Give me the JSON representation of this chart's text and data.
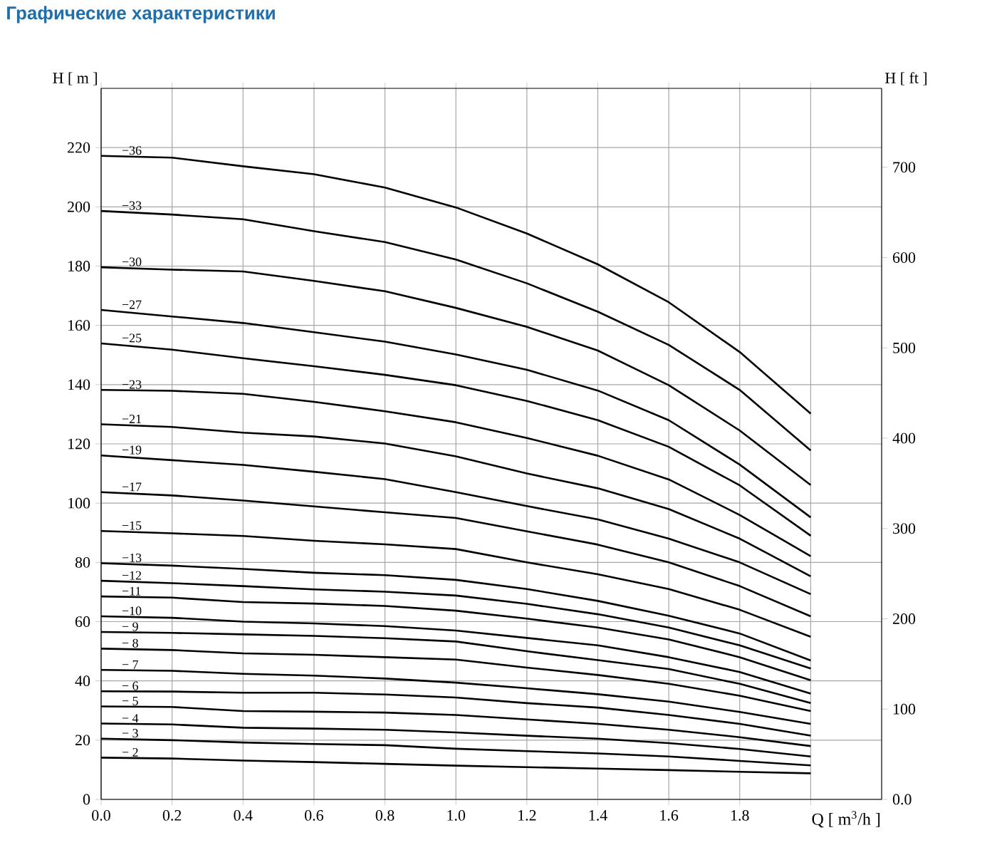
{
  "chart_data": {
    "type": "line",
    "title": "Графические характеристики",
    "xlabel": "Q [ m$^{3}$/h ]",
    "ylabel": "H [ m ]",
    "y2label": "H [ ft ]",
    "x": [
      0,
      0.2,
      0.4,
      0.6,
      0.8,
      1.0,
      1.2,
      1.4,
      1.6,
      1.8,
      2.0
    ],
    "xlim": [
      0,
      2.2
    ],
    "xticks": [
      {
        "value": 0,
        "label": "0.0"
      },
      0.2,
      0.4,
      0.6,
      0.8,
      {
        "value": 1,
        "label": "1.0"
      },
      1.2,
      1.4,
      1.6,
      1.8,
      {
        "value": 2,
        "label": null
      }
    ],
    "ylim": [
      0,
      240
    ],
    "yticks": [
      0,
      20,
      40,
      60,
      80,
      100,
      120,
      140,
      160,
      180,
      200,
      220
    ],
    "y2lim": [
      0,
      787.4
    ],
    "y2ticks": [
      {
        "value": 0,
        "label": "0.0"
      },
      100,
      200,
      300,
      400,
      500,
      600,
      700
    ],
    "grid": true,
    "marker": "none",
    "line_style": "solid",
    "series": [
      {
        "name": "−36",
        "color": "#000000",
        "values": [
          217.2,
          216.6,
          213.7,
          211,
          206.5,
          199.8,
          191,
          180.6,
          167.8,
          151,
          130.2
        ]
      },
      {
        "name": "−33",
        "color": "#000000",
        "values": [
          198.6,
          197.4,
          195.8,
          191.8,
          188.1,
          182.2,
          174.2,
          164.6,
          153.4,
          138.2,
          117.8
        ]
      },
      {
        "name": "−30",
        "color": "#000000",
        "values": [
          179.6,
          178.8,
          178.2,
          175,
          171.5,
          165.9,
          159.5,
          151.5,
          139.8,
          124.5,
          106.1
        ]
      },
      {
        "name": "−27",
        "color": "#000000",
        "values": [
          165.2,
          163,
          160.8,
          157.7,
          154.5,
          150.2,
          145,
          138,
          128,
          113,
          95.2
        ]
      },
      {
        "name": "−25",
        "color": "#000000",
        "values": [
          153.9,
          151.8,
          148.9,
          146.2,
          143.3,
          139.8,
          134.5,
          128,
          119,
          106,
          89.0
        ]
      },
      {
        "name": "−23",
        "color": "#000000",
        "values": [
          138.2,
          137.9,
          136.9,
          134.2,
          131.0,
          127.3,
          122,
          116,
          108,
          96,
          82.1
        ]
      },
      {
        "name": "−21",
        "color": "#000000",
        "values": [
          126.6,
          125.7,
          123.8,
          122.5,
          120.1,
          115.8,
          110,
          105,
          98,
          88,
          75.3
        ]
      },
      {
        "name": "−19",
        "color": "#000000",
        "values": [
          116.1,
          114.5,
          112.9,
          110.6,
          108.1,
          103.7,
          99,
          94.5,
          88,
          80,
          69.3
        ]
      },
      {
        "name": "−17",
        "color": "#000000",
        "values": [
          103.7,
          102.6,
          100.9,
          98.9,
          96.9,
          95.0,
          90.5,
          86,
          80,
          72,
          61.8
        ]
      },
      {
        "name": "−15",
        "color": "#000000",
        "values": [
          90.6,
          89.8,
          88.9,
          87.3,
          86.1,
          84.5,
          80,
          76,
          71,
          64,
          54.9
        ]
      },
      {
        "name": "−13",
        "color": "#000000",
        "values": [
          79.7,
          78.9,
          77.8,
          76.5,
          75.7,
          74.1,
          71,
          67,
          62,
          56,
          46.9
        ]
      },
      {
        "name": "−12",
        "color": "#000000",
        "values": [
          73.8,
          73.0,
          72.0,
          70.9,
          70.1,
          68.8,
          66,
          62.5,
          58,
          52,
          44.2
        ]
      },
      {
        "name": "−11",
        "color": "#000000",
        "values": [
          68.5,
          68.1,
          66.6,
          66.1,
          65.3,
          63.7,
          61,
          58,
          54,
          48,
          40.2
        ]
      },
      {
        "name": "−10",
        "color": "#000000",
        "values": [
          61.8,
          61.3,
          60.0,
          59.4,
          58.5,
          57.0,
          54.5,
          52,
          48,
          43,
          35.7
        ]
      },
      {
        "name": "− 9",
        "color": "#000000",
        "values": [
          56.5,
          56.2,
          55.7,
          55.2,
          54.4,
          53.3,
          50,
          47,
          44,
          39,
          32.5
        ]
      },
      {
        "name": "− 8",
        "color": "#000000",
        "values": [
          50.9,
          50.4,
          49.3,
          48.8,
          48.0,
          47.2,
          44.5,
          42,
          39,
          35,
          29.8
        ]
      },
      {
        "name": "− 7",
        "color": "#000000",
        "values": [
          43.7,
          43.4,
          42.4,
          41.8,
          40.8,
          39.4,
          37.5,
          35.5,
          33,
          29.5,
          25.5
        ]
      },
      {
        "name": "− 6",
        "color": "#000000",
        "values": [
          36.5,
          36.4,
          36.0,
          36.0,
          35.4,
          34.4,
          32.5,
          31,
          28.5,
          25.5,
          21.5
        ]
      },
      {
        "name": "− 5",
        "color": "#000000",
        "values": [
          31.4,
          31.2,
          29.8,
          29.6,
          29.3,
          28.5,
          27,
          25.5,
          23.5,
          21,
          18
        ]
      },
      {
        "name": "− 4",
        "color": "#000000",
        "values": [
          25.6,
          25.3,
          24.2,
          23.9,
          23.5,
          22.6,
          21.5,
          20.5,
          19,
          17,
          14.5
        ]
      },
      {
        "name": "− 3",
        "color": "#000000",
        "values": [
          20.5,
          20.0,
          19.2,
          18.7,
          18.3,
          17.1,
          16.3,
          15.5,
          14.5,
          13,
          11.5
        ]
      },
      {
        "name": "− 2",
        "color": "#000000",
        "values": [
          14.1,
          13.8,
          13.1,
          12.6,
          12.0,
          11.4,
          10.9,
          10.4,
          9.9,
          9.3,
          8.8
        ]
      }
    ]
  }
}
